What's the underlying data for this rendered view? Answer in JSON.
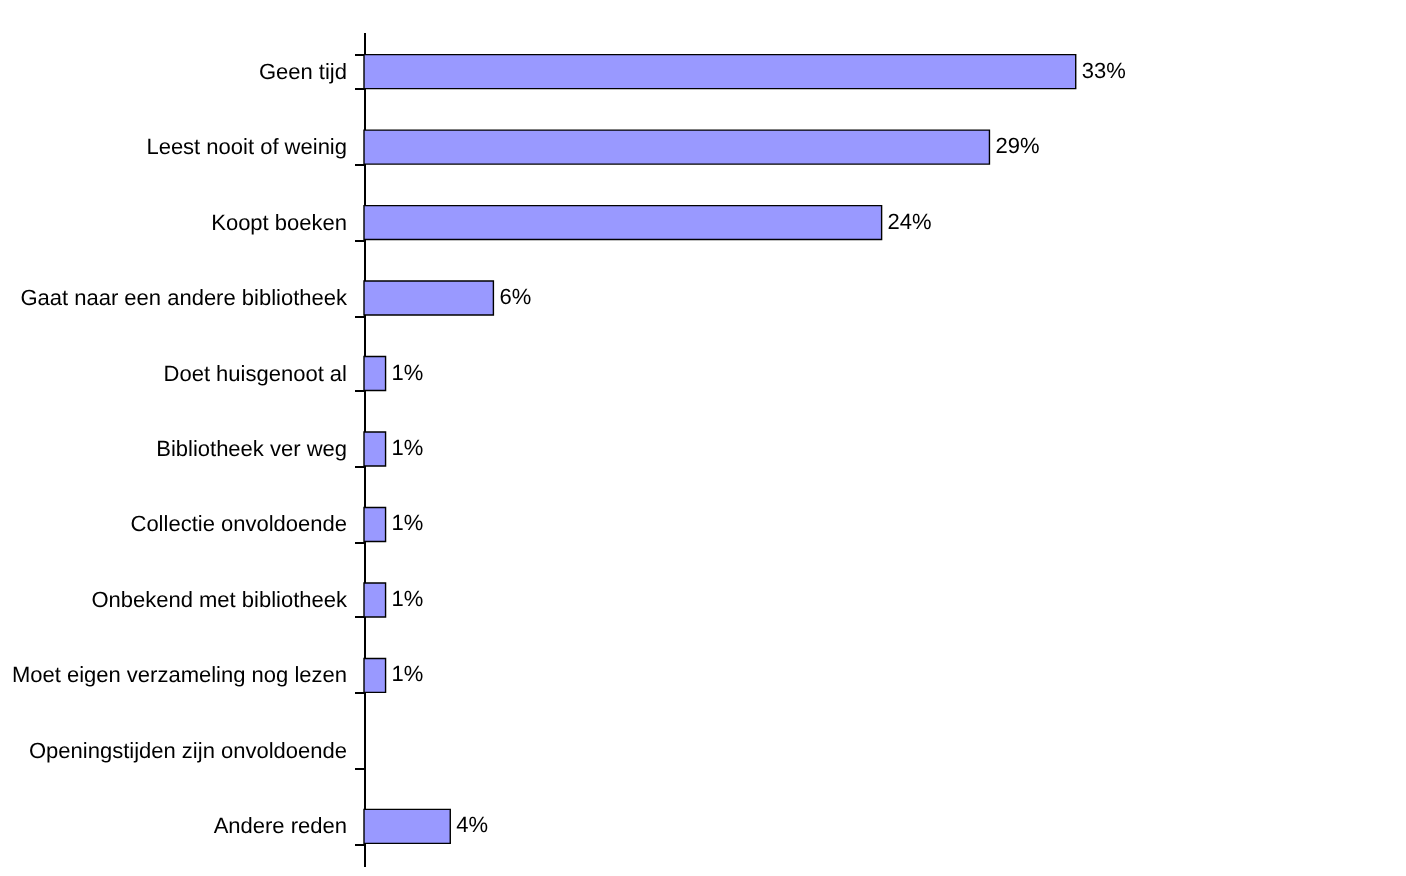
{
  "chart_data": {
    "type": "bar",
    "orientation": "horizontal",
    "categories": [
      "Geen tijd",
      "Leest nooit of weinig",
      "Koopt boeken",
      "Gaat naar een andere bibliotheek",
      "Doet huisgenoot al",
      "Bibliotheek ver weg",
      "Collectie onvoldoende",
      "Onbekend met bibliotheek",
      "Moet eigen verzameling nog lezen",
      "Openingstijden zijn onvoldoende",
      "Andere reden"
    ],
    "values": [
      33,
      29,
      24,
      6,
      1,
      1,
      1,
      1,
      1,
      null,
      4
    ],
    "value_labels": [
      "33%",
      "29%",
      "24%",
      "6%",
      "1%",
      "1%",
      "1%",
      "1%",
      "1%",
      null,
      "4%"
    ],
    "color": "#9999ff",
    "grid": false
  }
}
